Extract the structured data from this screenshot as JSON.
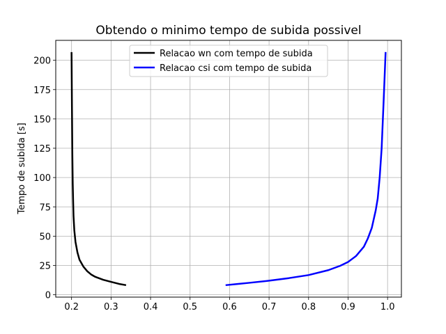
{
  "chart_data": {
    "type": "line",
    "title": "Obtendo o minimo tempo de subida possivel",
    "xlabel": "",
    "ylabel": "Tempo de subida [s]",
    "xlim": [
      0.16,
      1.035
    ],
    "ylim": [
      -2,
      217
    ],
    "xticks": [
      0.2,
      0.3,
      0.4,
      0.5,
      0.6,
      0.7,
      0.8,
      0.9,
      1.0
    ],
    "xtick_labels": [
      "0.2",
      "0.3",
      "0.4",
      "0.5",
      "0.6",
      "0.7",
      "0.8",
      "0.9",
      "1.0"
    ],
    "yticks": [
      0,
      25,
      50,
      75,
      100,
      125,
      150,
      175,
      200
    ],
    "ytick_labels": [
      "0",
      "25",
      "50",
      "75",
      "100",
      "125",
      "150",
      "175",
      "200"
    ],
    "grid": true,
    "legend_position": "top-center",
    "series": [
      {
        "name": "Relacao wn com tempo de subida",
        "color": "#000000",
        "points": [
          [
            0.2,
            207
          ],
          [
            0.201,
            160
          ],
          [
            0.202,
            120
          ],
          [
            0.203,
            95
          ],
          [
            0.204,
            80
          ],
          [
            0.205,
            67
          ],
          [
            0.207,
            55
          ],
          [
            0.21,
            45
          ],
          [
            0.215,
            36
          ],
          [
            0.22,
            30
          ],
          [
            0.23,
            24
          ],
          [
            0.24,
            20
          ],
          [
            0.25,
            17.2
          ],
          [
            0.26,
            15.3
          ],
          [
            0.28,
            12.8
          ],
          [
            0.3,
            11
          ],
          [
            0.32,
            9.3
          ],
          [
            0.338,
            8.2
          ]
        ]
      },
      {
        "name": "Relacao csi com tempo de subida",
        "color": "#0000ff",
        "points": [
          [
            0.59,
            8.2
          ],
          [
            0.62,
            9.2
          ],
          [
            0.65,
            10.2
          ],
          [
            0.7,
            12.0
          ],
          [
            0.75,
            14.2
          ],
          [
            0.8,
            16.8
          ],
          [
            0.85,
            21
          ],
          [
            0.88,
            24.7
          ],
          [
            0.9,
            28
          ],
          [
            0.92,
            33
          ],
          [
            0.94,
            41
          ],
          [
            0.95,
            48
          ],
          [
            0.96,
            57
          ],
          [
            0.97,
            72
          ],
          [
            0.975,
            82
          ],
          [
            0.98,
            100
          ],
          [
            0.985,
            125
          ],
          [
            0.99,
            165
          ],
          [
            0.993,
            190
          ],
          [
            0.995,
            207
          ]
        ]
      }
    ]
  }
}
